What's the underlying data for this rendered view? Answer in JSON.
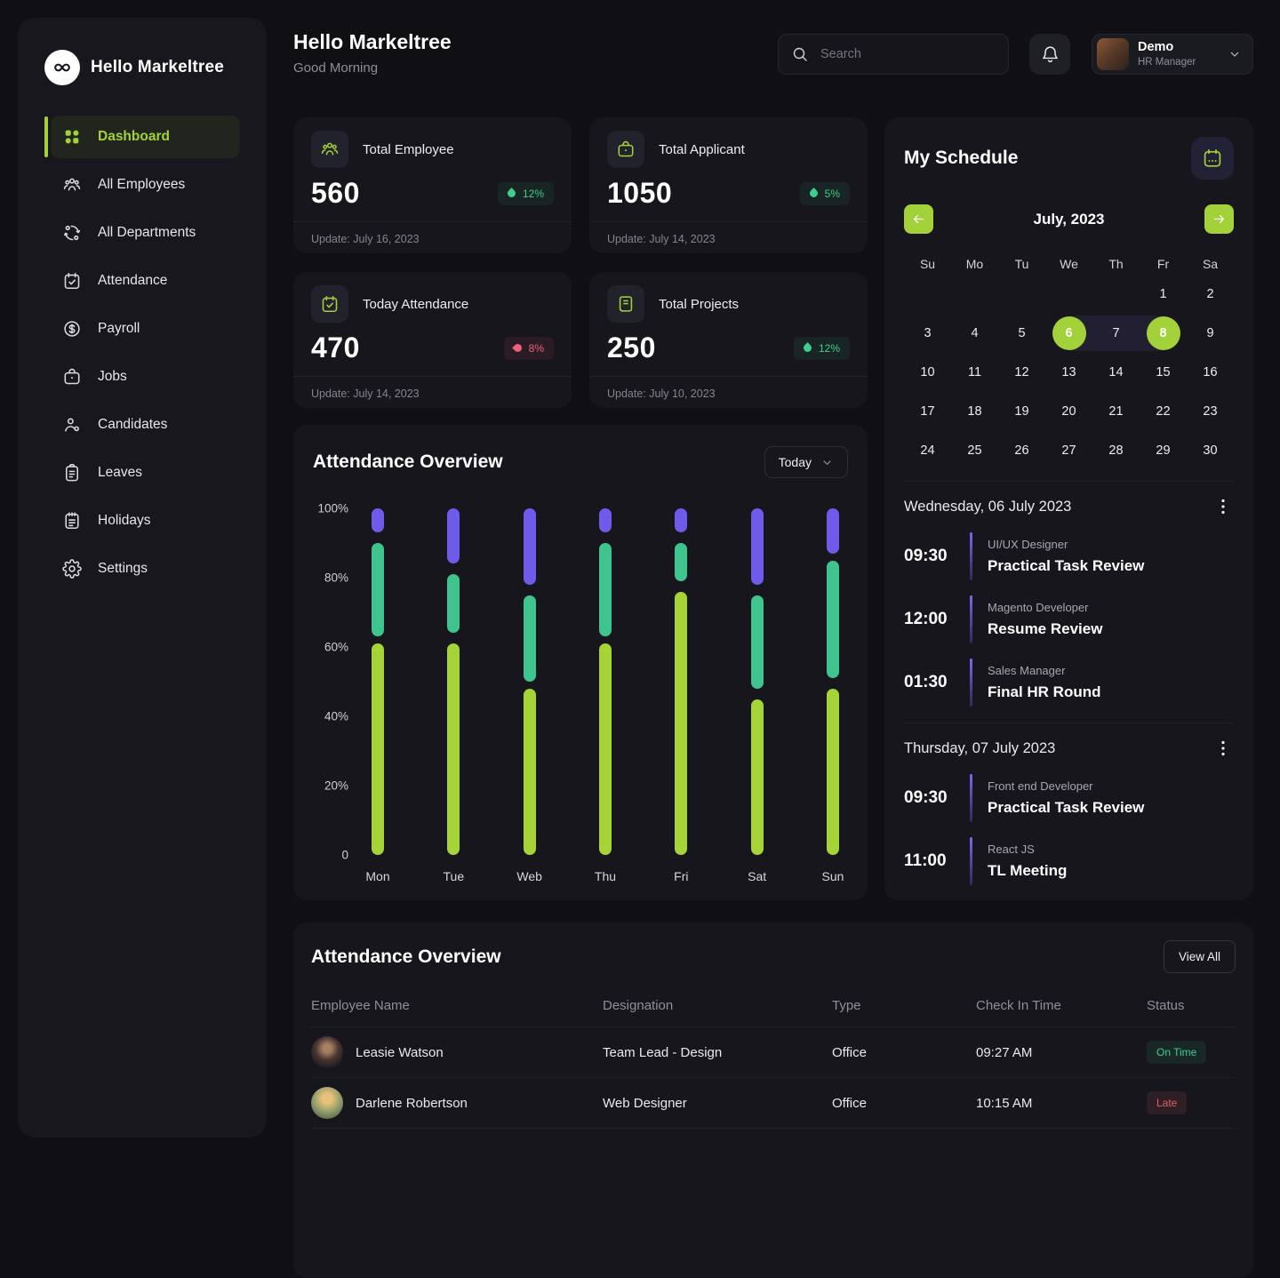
{
  "brand": {
    "name": "Hello Markeltree"
  },
  "sidebar": {
    "items": [
      {
        "label": "Dashboard",
        "icon": "dashboard-icon",
        "active": true
      },
      {
        "label": "All Employees",
        "icon": "employees-icon",
        "active": false
      },
      {
        "label": "All Departments",
        "icon": "departments-icon",
        "active": false
      },
      {
        "label": "Attendance",
        "icon": "attendance-icon",
        "active": false
      },
      {
        "label": "Payroll",
        "icon": "payroll-icon",
        "active": false
      },
      {
        "label": "Jobs",
        "icon": "jobs-icon",
        "active": false
      },
      {
        "label": "Candidates",
        "icon": "candidates-icon",
        "active": false
      },
      {
        "label": "Leaves",
        "icon": "leaves-icon",
        "active": false
      },
      {
        "label": "Holidays",
        "icon": "holidays-icon",
        "active": false
      },
      {
        "label": "Settings",
        "icon": "settings-icon",
        "active": false
      }
    ]
  },
  "header": {
    "title": "Hello Markeltree",
    "subtitle": "Good Morning",
    "search_placeholder": "Search",
    "user": {
      "name": "Demo",
      "role": "HR Manager"
    }
  },
  "stats": [
    {
      "icon": "people-icon",
      "label": "Total Employee",
      "value": "560",
      "trend": "up",
      "trend_value": "12%",
      "update": "Update: July 16, 2023"
    },
    {
      "icon": "briefcase-icon",
      "label": "Total Applicant",
      "value": "1050",
      "trend": "up",
      "trend_value": "5%",
      "update": "Update: July 14, 2023"
    },
    {
      "icon": "calendar-check-icon",
      "label": "Today Attendance",
      "value": "470",
      "trend": "down",
      "trend_value": "8%",
      "update": "Update: July 14, 2023"
    },
    {
      "icon": "projects-icon",
      "label": "Total Projects",
      "value": "250",
      "trend": "up",
      "trend_value": "12%",
      "update": "Update: July 10, 2023"
    }
  ],
  "chart_data": {
    "type": "bar",
    "title": "Attendance Overview",
    "filter_label": "Today",
    "categories": [
      "Mon",
      "Tue",
      "Web",
      "Thu",
      "Fri",
      "Sat",
      "Sun"
    ],
    "y_ticks": [
      {
        "label": "100%",
        "value": 100
      },
      {
        "label": "80%",
        "value": 80
      },
      {
        "label": "60%",
        "value": 60
      },
      {
        "label": "40%",
        "value": 40
      },
      {
        "label": "20%",
        "value": 20
      },
      {
        "label": "0",
        "value": 0
      }
    ],
    "ylim": [
      0,
      100
    ],
    "unit": "percent",
    "grid": false,
    "legend": null,
    "series": [
      {
        "name": "segment-top",
        "color": "#6f5bea",
        "ranges": [
          [
            93,
            100
          ],
          [
            84,
            100
          ],
          [
            78,
            100
          ],
          [
            93,
            100
          ],
          [
            93,
            100
          ],
          [
            78,
            100
          ],
          [
            87,
            100
          ]
        ]
      },
      {
        "name": "segment-middle",
        "color": "#3fc48d",
        "ranges": [
          [
            63,
            90
          ],
          [
            64,
            81
          ],
          [
            50,
            75
          ],
          [
            63,
            90
          ],
          [
            79,
            90
          ],
          [
            48,
            75
          ],
          [
            51,
            85
          ]
        ]
      },
      {
        "name": "segment-bottom",
        "color": "#a4d435",
        "ranges": [
          [
            0,
            61
          ],
          [
            0,
            61
          ],
          [
            0,
            48
          ],
          [
            0,
            61
          ],
          [
            0,
            76
          ],
          [
            0,
            45
          ],
          [
            0,
            48
          ]
        ]
      }
    ]
  },
  "schedule": {
    "title": "My Schedule",
    "month_label": "July, 2023",
    "weekdays": [
      "Su",
      "Mo",
      "Tu",
      "We",
      "Th",
      "Fr",
      "Sa"
    ],
    "weeks": [
      [
        null,
        null,
        null,
        null,
        null,
        1,
        2
      ],
      [
        3,
        4,
        5,
        6,
        7,
        8,
        9
      ],
      [
        10,
        11,
        12,
        13,
        14,
        15,
        16
      ],
      [
        17,
        18,
        19,
        20,
        21,
        22,
        23
      ],
      [
        24,
        25,
        26,
        27,
        28,
        29,
        30
      ]
    ],
    "selected_days": [
      6,
      8
    ],
    "highlight_range": [
      6,
      8
    ],
    "sections": [
      {
        "date": "Wednesday, 06 July 2023",
        "items": [
          {
            "time": "09:30",
            "role": "UI/UX Designer",
            "title": "Practical Task Review"
          },
          {
            "time": "12:00",
            "role": "Magento Developer",
            "title": "Resume Review"
          },
          {
            "time": "01:30",
            "role": "Sales Manager",
            "title": "Final HR Round"
          }
        ]
      },
      {
        "date": "Thursday, 07 July 2023",
        "items": [
          {
            "time": "09:30",
            "role": "Front end Developer",
            "title": "Practical Task Review"
          },
          {
            "time": "11:00",
            "role": "React JS",
            "title": "TL Meeting"
          }
        ]
      }
    ]
  },
  "attendance_table": {
    "title": "Attendance Overview",
    "view_all_label": "View All",
    "columns": [
      "Employee Name",
      "Designation",
      "Type",
      "Check In Time",
      "Status"
    ],
    "rows": [
      {
        "name": "Leasie Watson",
        "designation": "Team Lead - Design",
        "type": "Office",
        "check_in": "09:27 AM",
        "status": "On Time",
        "status_type": "success"
      },
      {
        "name": "Darlene Robertson",
        "designation": "Web Designer",
        "type": "Office",
        "check_in": "10:15 AM",
        "status": "Late",
        "status_type": "danger"
      }
    ]
  },
  "colors": {
    "accent_green": "#a3d139",
    "chart_purple": "#6f5bea",
    "chart_teal": "#3fc48d",
    "chart_lime": "#a4d435",
    "positive": "#3ecf8e",
    "negative": "#ef5e7a"
  }
}
